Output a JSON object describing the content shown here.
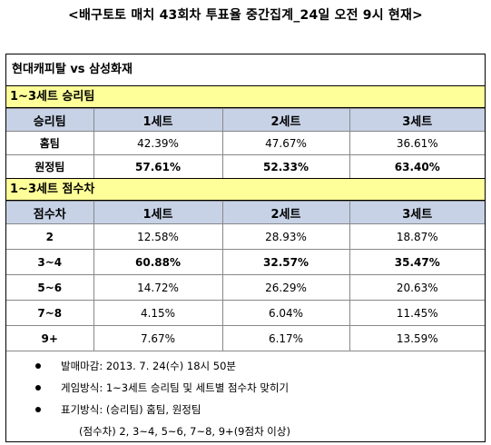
{
  "title": "<배구토토 매치 43회차 투표율 중간집계_24일 오전 9시 현재>",
  "match": "현대캐피탈 vs 삼성화재",
  "winner_section": {
    "title": "1~3세트 승리팀",
    "headers": [
      "승리팀",
      "1세트",
      "2세트",
      "3세트"
    ],
    "rows": [
      {
        "label": "홈팀",
        "values": [
          "42.39%",
          "47.67%",
          "36.61%"
        ]
      },
      {
        "label": "원정팀",
        "values": [
          "57.61%",
          "52.33%",
          "63.40%"
        ]
      }
    ]
  },
  "margin_section": {
    "title": "1~3세트 점수차",
    "headers": [
      "점수차",
      "1세트",
      "2세트",
      "3세트"
    ],
    "rows": [
      {
        "label": "2",
        "values": [
          "12.58%",
          "28.93%",
          "18.87%"
        ]
      },
      {
        "label": "3~4",
        "values": [
          "60.88%",
          "32.57%",
          "35.47%"
        ]
      },
      {
        "label": "5~6",
        "values": [
          "14.72%",
          "26.29%",
          "20.63%"
        ]
      },
      {
        "label": "7~8",
        "values": [
          "4.15%",
          "6.04%",
          "11.45%"
        ]
      },
      {
        "label": "9+",
        "values": [
          "7.67%",
          "6.17%",
          "13.59%"
        ]
      }
    ]
  },
  "notes": [
    "발매마감: 2013. 7. 24(수) 18시 50분",
    "게임방식: 1~3세트 승리팀 및 세트별 점수차 맞히기",
    "표기방식: (승리팀) 홈팀, 원정팀"
  ],
  "note_sub": "(점수차) 2, 3~4, 5~6, 7~8, 9+(9점차 이상)"
}
